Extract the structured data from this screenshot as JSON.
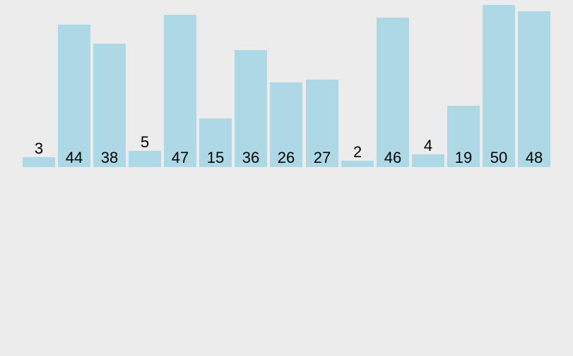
{
  "app": {
    "background_color": "#ececec"
  },
  "chart_data": {
    "type": "bar",
    "title": "",
    "xlabel": "",
    "ylabel": "",
    "values": [
      3,
      44,
      38,
      5,
      47,
      15,
      36,
      26,
      27,
      2,
      46,
      4,
      19,
      50,
      48
    ],
    "data_labels": [
      "3",
      "44",
      "38",
      "5",
      "47",
      "15",
      "36",
      "26",
      "27",
      "2",
      "46",
      "4",
      "19",
      "50",
      "48"
    ],
    "data_labels_visible": true,
    "ylim": [
      0,
      50
    ],
    "grid": false,
    "legend": false,
    "axes_visible": false,
    "bar_count": 15,
    "bar_color": "#add8e6",
    "label_color": "#000000",
    "background_color": "#ececec"
  }
}
